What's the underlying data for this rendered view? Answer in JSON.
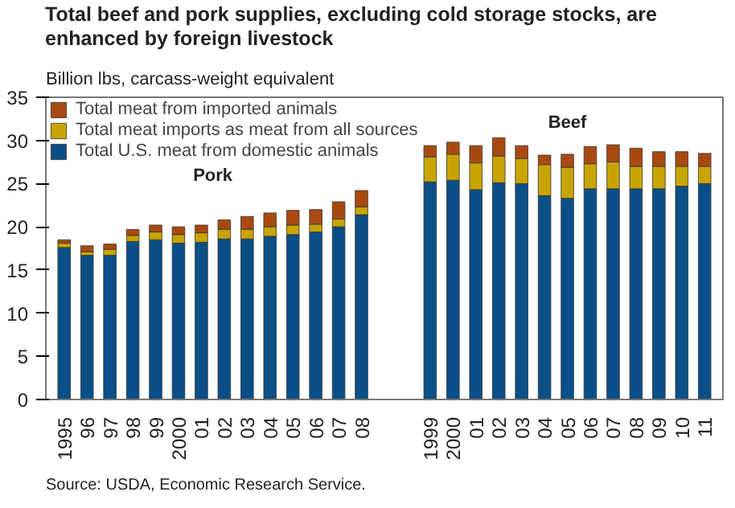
{
  "chart_data": {
    "type": "bar",
    "stacked": true,
    "title": "Total beef and pork supplies, excluding cold storage stocks, are enhanced by foreign livestock",
    "subtitle": "Billion lbs, carcass-weight equivalent",
    "categories": [
      "1995",
      "96",
      "97",
      "98",
      "99",
      "2000",
      "01",
      "02",
      "03",
      "04",
      "05",
      "06",
      "07",
      "08",
      null,
      null,
      "1999",
      "2000",
      "01",
      "02",
      "03",
      "04",
      "05",
      "06",
      "07",
      "08",
      "09",
      "10",
      "11"
    ],
    "series": [
      {
        "name": "Total U.S. meat from domestic animals",
        "color": "#0a4f87",
        "values": [
          17.6,
          16.7,
          16.7,
          18.3,
          18.5,
          18.1,
          18.2,
          18.6,
          18.6,
          18.9,
          19.1,
          19.4,
          20.0,
          21.4,
          null,
          null,
          25.2,
          25.4,
          24.3,
          25.1,
          25.0,
          23.6,
          23.3,
          24.4,
          24.4,
          24.4,
          24.4,
          24.7,
          25.0
        ]
      },
      {
        "name": "Total meat imports as meat from all sources",
        "color": "#c8a400",
        "values": [
          0.5,
          0.4,
          0.7,
          0.7,
          0.9,
          1.0,
          1.1,
          1.1,
          1.1,
          1.1,
          1.1,
          0.9,
          0.9,
          0.9,
          null,
          null,
          2.9,
          3.0,
          3.1,
          3.1,
          2.9,
          3.6,
          3.6,
          2.9,
          3.1,
          2.6,
          2.6,
          2.3,
          2.0
        ]
      },
      {
        "name": "Total meat from imported animals",
        "color": "#a84a10",
        "values": [
          0.4,
          0.7,
          0.6,
          0.7,
          0.8,
          0.9,
          0.9,
          1.1,
          1.5,
          1.6,
          1.7,
          1.7,
          2.0,
          1.9,
          null,
          null,
          1.3,
          1.4,
          2.0,
          2.1,
          1.5,
          1.1,
          1.5,
          2.0,
          2.0,
          2.1,
          1.7,
          1.7,
          1.5
        ]
      }
    ],
    "ylim": [
      0,
      35
    ],
    "yticks": [
      0,
      5,
      10,
      15,
      20,
      25,
      30,
      35
    ],
    "legend": "top left",
    "grid": false,
    "annotations": [
      "Pork",
      "Beef",
      "Source: USDA, Economic Research Service."
    ]
  }
}
